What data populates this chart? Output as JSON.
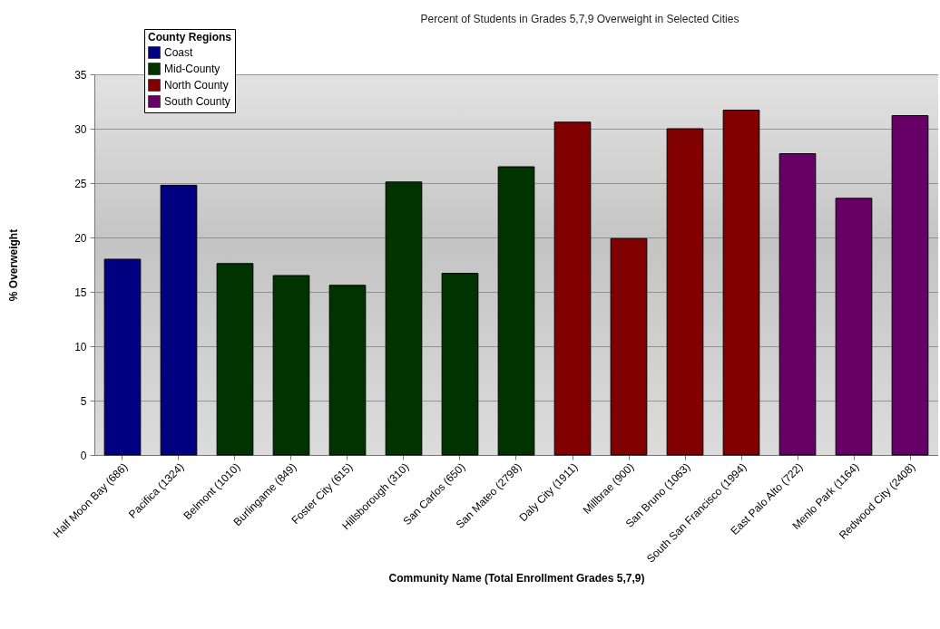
{
  "chart_data": {
    "type": "bar",
    "title": "Percent of Students in Grades 5,7,9 Overweight in Selected Cities",
    "xlabel": "Community Name (Total Enrollment Grades 5,7,9)",
    "ylabel": "% Overweight",
    "legend_title": "County Regions",
    "categories": [
      "Half Moon Bay (686)",
      "Pacifica (1324)",
      "Belmont (1010)",
      "Burlingame (849)",
      "Foster City (615)",
      "Hillsborough (310)",
      "San Carlos (650)",
      "San Mateo (2798)",
      "Daly City (1911)",
      "Millbrae (900)",
      "San Bruno (1063)",
      "South San Francisco (1994)",
      "East Palo Alto (722)",
      "Menlo Park (1164)",
      "Redwood City (2408)"
    ],
    "series": [
      {
        "name": "Coast",
        "color": "#000080",
        "values": [
          18.0,
          24.8,
          null,
          null,
          null,
          null,
          null,
          null,
          null,
          null,
          null,
          null,
          null,
          null,
          null
        ]
      },
      {
        "name": "Mid-County",
        "color": "#003300",
        "values": [
          null,
          null,
          17.6,
          16.5,
          15.6,
          25.1,
          16.7,
          26.5,
          null,
          null,
          null,
          null,
          null,
          null,
          null
        ]
      },
      {
        "name": "North County",
        "color": "#800000",
        "values": [
          null,
          null,
          null,
          null,
          null,
          null,
          null,
          null,
          30.6,
          19.9,
          30.0,
          31.7,
          null,
          null,
          null
        ]
      },
      {
        "name": "South County",
        "color": "#660066",
        "values": [
          null,
          null,
          null,
          null,
          null,
          null,
          null,
          null,
          null,
          null,
          null,
          null,
          27.7,
          23.6,
          31.2
        ]
      }
    ],
    "ylim": [
      0,
      35
    ],
    "yticks": [
      0,
      5,
      10,
      15,
      20,
      25,
      30,
      35
    ],
    "grid": "y",
    "legend": "top left"
  }
}
